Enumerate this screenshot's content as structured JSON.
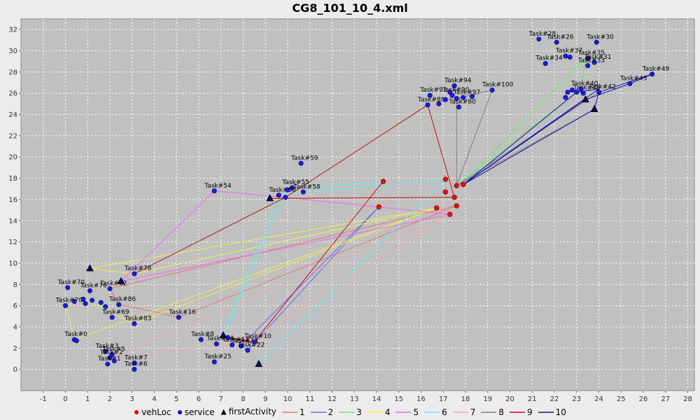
{
  "chart_data": {
    "type": "scatter",
    "title": "CG8_101_10_4.xml",
    "xlabel": "",
    "ylabel": "",
    "xlim": [
      -2,
      28.3
    ],
    "ylim": [
      -2,
      33
    ],
    "x_ticks": [
      -1,
      0,
      1,
      2,
      3,
      4,
      5,
      6,
      7,
      8,
      9,
      10,
      11,
      12,
      13,
      14,
      15,
      16,
      17,
      18,
      19,
      20,
      21,
      22,
      23,
      24,
      25,
      26,
      27,
      28
    ],
    "y_ticks": [
      0,
      2,
      4,
      6,
      8,
      10,
      12,
      14,
      16,
      18,
      20,
      22,
      24,
      26,
      28,
      30,
      32
    ],
    "grid": true,
    "legend_position": "bottom",
    "legend": [
      {
        "label": "vehLoc",
        "marker": "circle",
        "color": "#ee0000"
      },
      {
        "label": "service",
        "marker": "circle",
        "color": "#0000ee"
      },
      {
        "label": "firstActivity",
        "marker": "triangle",
        "color": "#000000"
      },
      {
        "label": "1",
        "marker": "line",
        "color": "#f07070"
      },
      {
        "label": "2",
        "marker": "line",
        "color": "#6a6af0"
      },
      {
        "label": "3",
        "marker": "line",
        "color": "#66ee66"
      },
      {
        "label": "4",
        "marker": "line",
        "color": "#eeee55"
      },
      {
        "label": "5",
        "marker": "line",
        "color": "#ee66ee"
      },
      {
        "label": "6",
        "marker": "line",
        "color": "#66eeee"
      },
      {
        "label": "7",
        "marker": "line",
        "color": "#f4aaaa"
      },
      {
        "label": "8",
        "marker": "line",
        "color": "#808080"
      },
      {
        "label": "9",
        "marker": "line",
        "color": "#bb1010"
      },
      {
        "label": "10",
        "marker": "line",
        "color": "#1010aa"
      }
    ],
    "vehLoc": [
      [
        14.3,
        17.7
      ],
      [
        14.1,
        15.3
      ],
      [
        16.7,
        15.2
      ],
      [
        17.1,
        17.9
      ],
      [
        17.1,
        16.7
      ],
      [
        17.5,
        16.2
      ],
      [
        17.6,
        17.3
      ],
      [
        17.9,
        17.4
      ],
      [
        17.6,
        15.4
      ],
      [
        17.3,
        14.6
      ]
    ],
    "first_activity": [
      [
        1.1,
        9.5
      ],
      [
        2.5,
        8.3
      ],
      [
        9.2,
        16.1
      ],
      [
        8.7,
        0.5
      ],
      [
        23.4,
        25.4
      ],
      [
        23.8,
        24.5
      ],
      [
        7.1,
        3.2
      ]
    ],
    "service": [
      {
        "x": 23.9,
        "y": 30.8,
        "label": "Task#30"
      },
      {
        "x": 22.1,
        "y": 30.8,
        "label": "Task#26"
      },
      {
        "x": 21.3,
        "y": 31.1,
        "label": "Task#28"
      },
      {
        "x": 21.6,
        "y": 28.8,
        "label": "Task#34"
      },
      {
        "x": 22.5,
        "y": 29.5,
        "label": "Task#37"
      },
      {
        "x": 22.7,
        "y": 29.4,
        "label": ""
      },
      {
        "x": 23.5,
        "y": 29.3,
        "label": "Task#35"
      },
      {
        "x": 23.8,
        "y": 28.9,
        "label": "Task#31"
      },
      {
        "x": 23.5,
        "y": 28.6,
        "label": "Task#33"
      },
      {
        "x": 26.4,
        "y": 27.8,
        "label": "Task#49"
      },
      {
        "x": 25.4,
        "y": 26.9,
        "label": "Task#43"
      },
      {
        "x": 24.0,
        "y": 26.1,
        "label": "Task#42"
      },
      {
        "x": 23.3,
        "y": 26.0,
        "label": "Task#48"
      },
      {
        "x": 23.2,
        "y": 26.4,
        "label": "Task#40"
      },
      {
        "x": 22.5,
        "y": 25.6,
        "label": ""
      },
      {
        "x": 22.8,
        "y": 26.3,
        "label": ""
      },
      {
        "x": 23.0,
        "y": 26.1,
        "label": ""
      },
      {
        "x": 22.6,
        "y": 26.1,
        "label": ""
      },
      {
        "x": 17.5,
        "y": 26.7,
        "label": "Task#94"
      },
      {
        "x": 17.4,
        "y": 25.8,
        "label": "Task#90"
      },
      {
        "x": 19.2,
        "y": 26.3,
        "label": "Task#100"
      },
      {
        "x": 17.9,
        "y": 25.6,
        "label": "Task#97"
      },
      {
        "x": 16.4,
        "y": 25.8,
        "label": "Task#93"
      },
      {
        "x": 16.3,
        "y": 24.9,
        "label": "Task#88"
      },
      {
        "x": 17.7,
        "y": 24.7,
        "label": "Task#80"
      },
      {
        "x": 16.8,
        "y": 25.0,
        "label": ""
      },
      {
        "x": 17.1,
        "y": 25.4,
        "label": ""
      },
      {
        "x": 17.3,
        "y": 26.1,
        "label": ""
      },
      {
        "x": 17.6,
        "y": 25.5,
        "label": ""
      },
      {
        "x": 18.3,
        "y": 25.7,
        "label": ""
      },
      {
        "x": 10.6,
        "y": 19.4,
        "label": "Task#59"
      },
      {
        "x": 6.7,
        "y": 16.8,
        "label": "Task#54"
      },
      {
        "x": 10.7,
        "y": 16.7,
        "label": "Task#58"
      },
      {
        "x": 10.2,
        "y": 17.1,
        "label": "Task#55"
      },
      {
        "x": 9.6,
        "y": 16.4,
        "label": "Task#60"
      },
      {
        "x": 9.9,
        "y": 16.2,
        "label": ""
      },
      {
        "x": 10.0,
        "y": 16.9,
        "label": ""
      },
      {
        "x": 3.1,
        "y": 9.0,
        "label": "Task#78"
      },
      {
        "x": 2.0,
        "y": 7.6,
        "label": "Task#82"
      },
      {
        "x": 0.1,
        "y": 7.7,
        "label": "Task#70"
      },
      {
        "x": 1.1,
        "y": 7.4,
        "label": "Task#76"
      },
      {
        "x": 2.4,
        "y": 6.1,
        "label": "Task#86"
      },
      {
        "x": 2.1,
        "y": 4.9,
        "label": "Task#69"
      },
      {
        "x": 3.1,
        "y": 4.3,
        "label": "Task#83"
      },
      {
        "x": 0.0,
        "y": 6.0,
        "label": "Task#70"
      },
      {
        "x": 0.4,
        "y": 6.4,
        "label": ""
      },
      {
        "x": 0.8,
        "y": 6.6,
        "label": ""
      },
      {
        "x": 1.2,
        "y": 6.5,
        "label": ""
      },
      {
        "x": 1.6,
        "y": 6.3,
        "label": ""
      },
      {
        "x": 0.9,
        "y": 6.2,
        "label": ""
      },
      {
        "x": 1.8,
        "y": 5.9,
        "label": ""
      },
      {
        "x": 5.1,
        "y": 4.9,
        "label": "Task#16"
      },
      {
        "x": 0.4,
        "y": 2.8,
        "label": "Task#0"
      },
      {
        "x": 0.5,
        "y": 2.7,
        "label": ""
      },
      {
        "x": 1.8,
        "y": 1.7,
        "label": "Task#3"
      },
      {
        "x": 2.1,
        "y": 1.4,
        "label": "Task#5"
      },
      {
        "x": 2.0,
        "y": 1.1,
        "label": "Task#2"
      },
      {
        "x": 1.9,
        "y": 0.5,
        "label": "Task#1"
      },
      {
        "x": 2.2,
        "y": 0.8,
        "label": ""
      },
      {
        "x": 3.1,
        "y": 0.6,
        "label": "Task#7"
      },
      {
        "x": 3.1,
        "y": 0.0,
        "label": "Task#6"
      },
      {
        "x": 6.8,
        "y": 2.4,
        "label": "Task#14"
      },
      {
        "x": 6.1,
        "y": 2.8,
        "label": "Task#8"
      },
      {
        "x": 7.5,
        "y": 2.3,
        "label": "Task#11"
      },
      {
        "x": 7.9,
        "y": 2.2,
        "label": "Task#13"
      },
      {
        "x": 7.3,
        "y": 3.0,
        "label": ""
      },
      {
        "x": 8.2,
        "y": 1.8,
        "label": "Task#22"
      },
      {
        "x": 6.7,
        "y": 0.7,
        "label": "Task#25"
      },
      {
        "x": 8.5,
        "y": 2.6,
        "label": "Task#10"
      }
    ],
    "routes": [
      {
        "name": "1",
        "points": [
          [
            17.6,
            15.4
          ],
          [
            5.1,
            4.9
          ],
          [
            3.2,
            5.8
          ],
          [
            2.4,
            6.1
          ],
          [
            2.0,
            7.6
          ],
          [
            17.6,
            15.4
          ]
        ]
      },
      {
        "name": "2",
        "points": [
          [
            14.1,
            15.3
          ],
          [
            8.2,
            1.8
          ],
          [
            7.9,
            2.2
          ],
          [
            14.1,
            15.3
          ]
        ]
      },
      {
        "name": "3",
        "points": [
          [
            17.6,
            17.3
          ],
          [
            23.2,
            26.4
          ],
          [
            23.4,
            29.3
          ],
          [
            17.8,
            17.4
          ]
        ]
      },
      {
        "name": "4",
        "points": [
          [
            16.7,
            15.2
          ],
          [
            1.1,
            9.5
          ],
          [
            3.1,
            9.0
          ],
          [
            16.7,
            15.2
          ]
        ]
      },
      {
        "name": "4",
        "points": [
          [
            16.7,
            15.2
          ],
          [
            0.4,
            2.8
          ],
          [
            0.0,
            6.0
          ],
          [
            0.8,
            6.6
          ],
          [
            3.1,
            4.3
          ],
          [
            16.7,
            15.2
          ]
        ]
      },
      {
        "name": "5",
        "points": [
          [
            17.3,
            14.6
          ],
          [
            9.9,
            16.2
          ],
          [
            6.7,
            16.8
          ],
          [
            2.5,
            8.3
          ],
          [
            17.3,
            14.6
          ]
        ]
      },
      {
        "name": "6",
        "points": [
          [
            17.1,
            17.9
          ],
          [
            9.6,
            16.4
          ],
          [
            7.1,
            3.2
          ],
          [
            10.0,
            17.0
          ],
          [
            14.3,
            17.7
          ]
        ]
      },
      {
        "name": "6",
        "points": [
          [
            17.1,
            17.9
          ],
          [
            8.7,
            0.5
          ],
          [
            17.1,
            17.9
          ]
        ]
      },
      {
        "name": "7",
        "points": [
          [
            17.3,
            14.6
          ],
          [
            2.0,
            1.1
          ],
          [
            8.2,
            2.6
          ],
          [
            17.3,
            14.6
          ]
        ]
      },
      {
        "name": "8",
        "points": [
          [
            17.6,
            17.3
          ],
          [
            19.2,
            26.3
          ],
          [
            17.6,
            25.5
          ],
          [
            17.6,
            17.3
          ]
        ]
      },
      {
        "name": "8",
        "points": [
          [
            17.6,
            17.3
          ],
          [
            23.8,
            24.5
          ],
          [
            24.0,
            26.1
          ],
          [
            17.6,
            17.3
          ]
        ]
      },
      {
        "name": "9",
        "points": [
          [
            17.5,
            16.2
          ],
          [
            9.2,
            16.1
          ],
          [
            17.5,
            16.2
          ]
        ]
      },
      {
        "name": "9",
        "points": [
          [
            17.5,
            16.2
          ],
          [
            16.3,
            24.9
          ],
          [
            9.9,
            16.2
          ],
          [
            3.1,
            9.0
          ]
        ]
      },
      {
        "name": "9",
        "points": [
          [
            14.3,
            17.7
          ],
          [
            8.5,
            2.6
          ],
          [
            7.3,
            3.0
          ],
          [
            8.7,
            2.4
          ]
        ]
      },
      {
        "name": "10",
        "points": [
          [
            17.9,
            17.4
          ],
          [
            23.8,
            24.5
          ],
          [
            24.0,
            26.1
          ],
          [
            26.4,
            27.8
          ],
          [
            25.4,
            26.9
          ],
          [
            23.4,
            25.4
          ],
          [
            17.9,
            17.4
          ]
        ]
      },
      {
        "name": "10",
        "points": [
          [
            17.9,
            17.4
          ],
          [
            23.0,
            26.1
          ],
          [
            24.0,
            26.4
          ],
          [
            17.9,
            17.4
          ]
        ]
      }
    ]
  }
}
